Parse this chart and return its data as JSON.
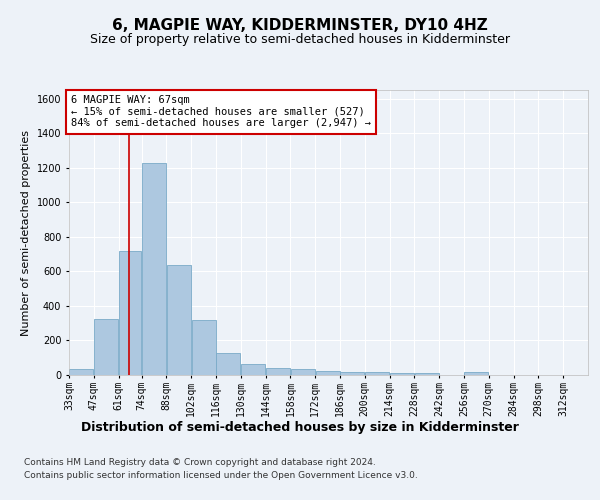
{
  "title": "6, MAGPIE WAY, KIDDERMINSTER, DY10 4HZ",
  "subtitle": "Size of property relative to semi-detached houses in Kidderminster",
  "xlabel": "Distribution of semi-detached houses by size in Kidderminster",
  "ylabel": "Number of semi-detached properties",
  "categories": [
    "33sqm",
    "47sqm",
    "61sqm",
    "74sqm",
    "88sqm",
    "102sqm",
    "116sqm",
    "130sqm",
    "144sqm",
    "158sqm",
    "172sqm",
    "186sqm",
    "200sqm",
    "214sqm",
    "228sqm",
    "242sqm",
    "256sqm",
    "270sqm",
    "284sqm",
    "298sqm",
    "312sqm"
  ],
  "values": [
    35,
    325,
    720,
    1225,
    635,
    320,
    130,
    65,
    40,
    32,
    25,
    18,
    15,
    10,
    10,
    0,
    18,
    0,
    0,
    0,
    0
  ],
  "bar_color": "#adc8e0",
  "bar_edge_color": "#7aaac8",
  "property_line_x": 67,
  "bin_edges": [
    33,
    47,
    61,
    74,
    88,
    102,
    116,
    130,
    144,
    158,
    172,
    186,
    200,
    214,
    228,
    242,
    256,
    270,
    284,
    298,
    312,
    326
  ],
  "annotation_text": "6 MAGPIE WAY: 67sqm\n← 15% of semi-detached houses are smaller (527)\n84% of semi-detached houses are larger (2,947) →",
  "annotation_box_color": "#ffffff",
  "annotation_box_edge": "#cc0000",
  "vline_color": "#cc0000",
  "footer_line1": "Contains HM Land Registry data © Crown copyright and database right 2024.",
  "footer_line2": "Contains public sector information licensed under the Open Government Licence v3.0.",
  "ylim": [
    0,
    1650
  ],
  "background_color": "#edf2f8",
  "plot_bg_color": "#edf2f8",
  "grid_color": "#ffffff",
  "title_fontsize": 11,
  "subtitle_fontsize": 9,
  "xlabel_fontsize": 9,
  "ylabel_fontsize": 8,
  "tick_fontsize": 7,
  "annotation_fontsize": 7.5,
  "footer_fontsize": 6.5
}
